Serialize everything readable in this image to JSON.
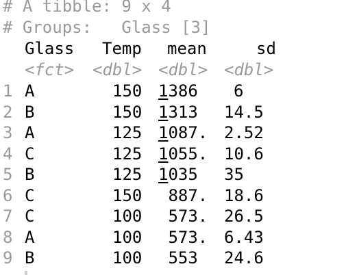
{
  "console": {
    "comment_tibble": "# A tibble: 9 x 4",
    "comment_groups": "# Groups:   Glass [3]",
    "columns": [
      "Glass",
      "Temp",
      "mean",
      "sd"
    ],
    "types": [
      "<fct>",
      "<dbl>",
      "<dbl>",
      "<dbl>"
    ],
    "rows": [
      {
        "n": "1",
        "glass": "A",
        "temp": "150",
        "mean_u": "1",
        "mean_r": "386",
        "sd": "6"
      },
      {
        "n": "2",
        "glass": "B",
        "temp": "150",
        "mean_u": "1",
        "mean_r": "313",
        "sd": "14.5"
      },
      {
        "n": "3",
        "glass": "A",
        "temp": "125",
        "mean_u": "1",
        "mean_r": "087.",
        "sd": "2.52"
      },
      {
        "n": "4",
        "glass": "C",
        "temp": "125",
        "mean_u": "1",
        "mean_r": "055.",
        "sd": "10.6"
      },
      {
        "n": "5",
        "glass": "B",
        "temp": "125",
        "mean_u": "1",
        "mean_r": "035",
        "sd": "35"
      },
      {
        "n": "6",
        "glass": "C",
        "temp": "150",
        "mean_u": "",
        "mean_r": "887.",
        "sd": "18.6"
      },
      {
        "n": "7",
        "glass": "C",
        "temp": "100",
        "mean_u": "",
        "mean_r": "573.",
        "sd": "26.5"
      },
      {
        "n": "8",
        "glass": "A",
        "temp": "100",
        "mean_u": "",
        "mean_r": "573.",
        "sd": "6.43"
      },
      {
        "n": "9",
        "glass": "B",
        "temp": "100",
        "mean_u": "",
        "mean_r": "553",
        "sd": "24.6"
      }
    ],
    "colors": {
      "text": "#000000",
      "muted": "#9a9a9a",
      "background": "#ffffff"
    }
  }
}
